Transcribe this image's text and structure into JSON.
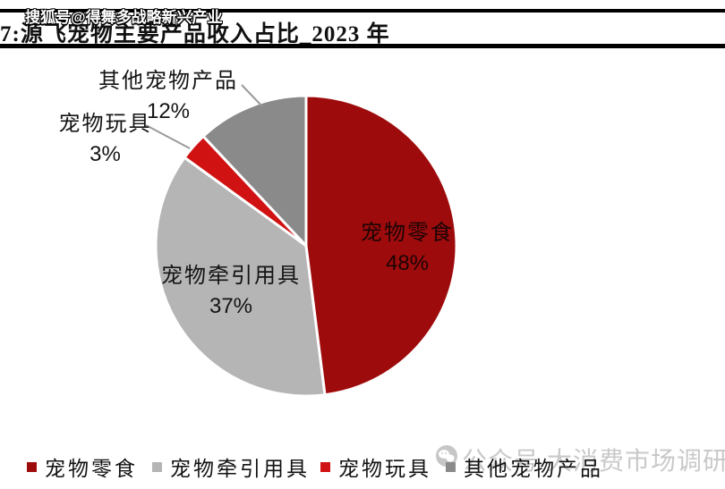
{
  "header": {
    "title": "7:源飞宠物主要产品收入占比_2023 年"
  },
  "watermarks": {
    "top_text": "搜狐号@得舞多战略新兴产业",
    "bottom_text": "公众号 大消费市场调研",
    "bottom_icon": "wechat-icon",
    "bottom_color": "#c9c9c9"
  },
  "chart_data": {
    "type": "pie",
    "title": "源飞宠物主要产品收入占比_2023年",
    "start_angle_deg": 0,
    "direction": "clockwise",
    "legend_position": "bottom",
    "slices": [
      {
        "label": "宠物零食",
        "value": 48,
        "pct_label": "48%",
        "color": "#9e0b0c",
        "label_position": "inside"
      },
      {
        "label": "宠物牵引用具",
        "value": 37,
        "pct_label": "37%",
        "color": "#b5b5b5",
        "label_position": "inside"
      },
      {
        "label": "宠物玩具",
        "value": 3,
        "pct_label": "3%",
        "color": "#d01212",
        "label_position": "outside"
      },
      {
        "label": "其他宠物产品",
        "value": 12,
        "pct_label": "12%",
        "color": "#8a8a8a",
        "label_position": "outside"
      }
    ]
  }
}
